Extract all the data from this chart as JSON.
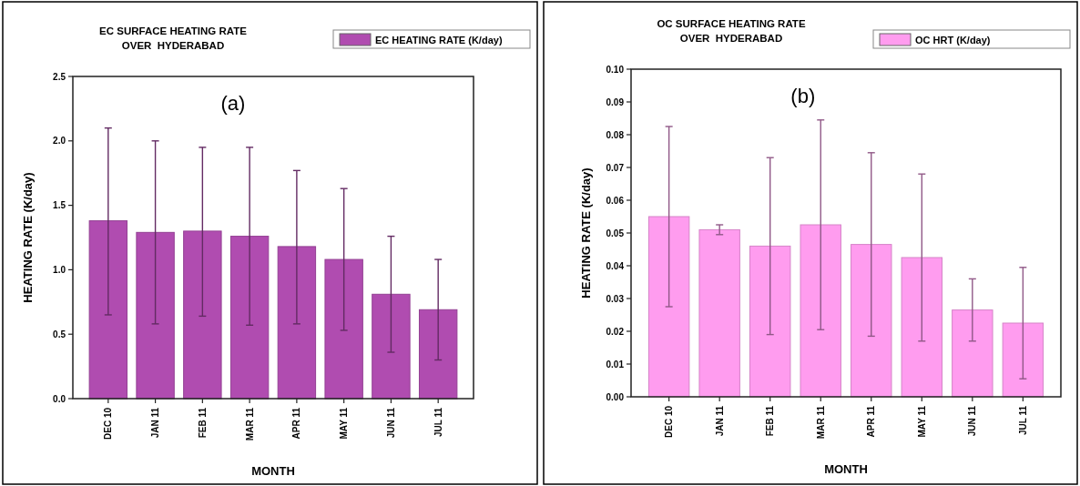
{
  "chart_data": [
    {
      "type": "bar",
      "title": "EC SURFACE HEATING RATE\nOVER  HYDERABAD",
      "xlabel": "MONTH",
      "ylabel": "HEATING RATE (K/day)",
      "annotations": [
        "(a)"
      ],
      "categories": [
        "DEC 10",
        "JAN 11",
        "FEB 11",
        "MAR 11",
        "APR 11",
        "MAY 11",
        "JUN 11",
        "JUL 11"
      ],
      "series": [
        {
          "name": "EC HEATING RATE (K/day)",
          "color": "#b04cb0",
          "values": [
            1.38,
            1.29,
            1.3,
            1.26,
            1.18,
            1.08,
            0.81,
            0.69
          ],
          "errors": [
            [
              0.65,
              2.1
            ],
            [
              0.58,
              2.0
            ],
            [
              0.64,
              1.95
            ],
            [
              0.57,
              1.95
            ],
            [
              0.58,
              1.77
            ],
            [
              0.53,
              1.63
            ],
            [
              0.36,
              1.26
            ],
            [
              0.3,
              1.08
            ]
          ]
        }
      ],
      "ylim": [
        0,
        2.5
      ],
      "yticks": [
        {
          "value": 0,
          "label": "0.0"
        },
        {
          "value": 0.5,
          "label": "0.5"
        },
        {
          "value": 1,
          "label": "1.0"
        },
        {
          "value": 1.5,
          "label": "1.5"
        },
        {
          "value": 2,
          "label": "2.0"
        },
        {
          "value": 2.5,
          "label": "2.5"
        }
      ],
      "grid": false,
      "legend": "top right"
    },
    {
      "type": "bar",
      "title": "OC SURFACE HEATING RATE\nOVER  HYDERABAD",
      "xlabel": "MONTH",
      "ylabel": "HEATING RATE (K/day)",
      "annotations": [
        "(b)"
      ],
      "categories": [
        "DEC 10",
        "JAN 11",
        "FEB 11",
        "MAR 11",
        "APR 11",
        "MAY 11",
        "JUN 11",
        "JUL 11"
      ],
      "series": [
        {
          "name": "OC HRT (K/day)",
          "color": "#ff9cef",
          "values": [
            0.055,
            0.051,
            0.046,
            0.0525,
            0.0465,
            0.0425,
            0.0265,
            0.0225
          ],
          "errors": [
            [
              0.0275,
              0.0825
            ],
            [
              0.0495,
              0.0525
            ],
            [
              0.019,
              0.073
            ],
            [
              0.0205,
              0.0845
            ],
            [
              0.0185,
              0.0745
            ],
            [
              0.017,
              0.068
            ],
            [
              0.017,
              0.036
            ],
            [
              0.0055,
              0.0395
            ]
          ]
        }
      ],
      "ylim": [
        0,
        0.1
      ],
      "yticks": [
        {
          "value": 0,
          "label": "0.00"
        },
        {
          "value": 0.01,
          "label": "0.01"
        },
        {
          "value": 0.02,
          "label": "0.02"
        },
        {
          "value": 0.03,
          "label": "0.03"
        },
        {
          "value": 0.04,
          "label": "0.04"
        },
        {
          "value": 0.05,
          "label": "0.05"
        },
        {
          "value": 0.06,
          "label": "0.06"
        },
        {
          "value": 0.07,
          "label": "0.07"
        },
        {
          "value": 0.08,
          "label": "0.08"
        },
        {
          "value": 0.09,
          "label": "0.09"
        },
        {
          "value": 0.1,
          "label": "0.10"
        }
      ],
      "grid": false,
      "legend": "top right"
    }
  ]
}
